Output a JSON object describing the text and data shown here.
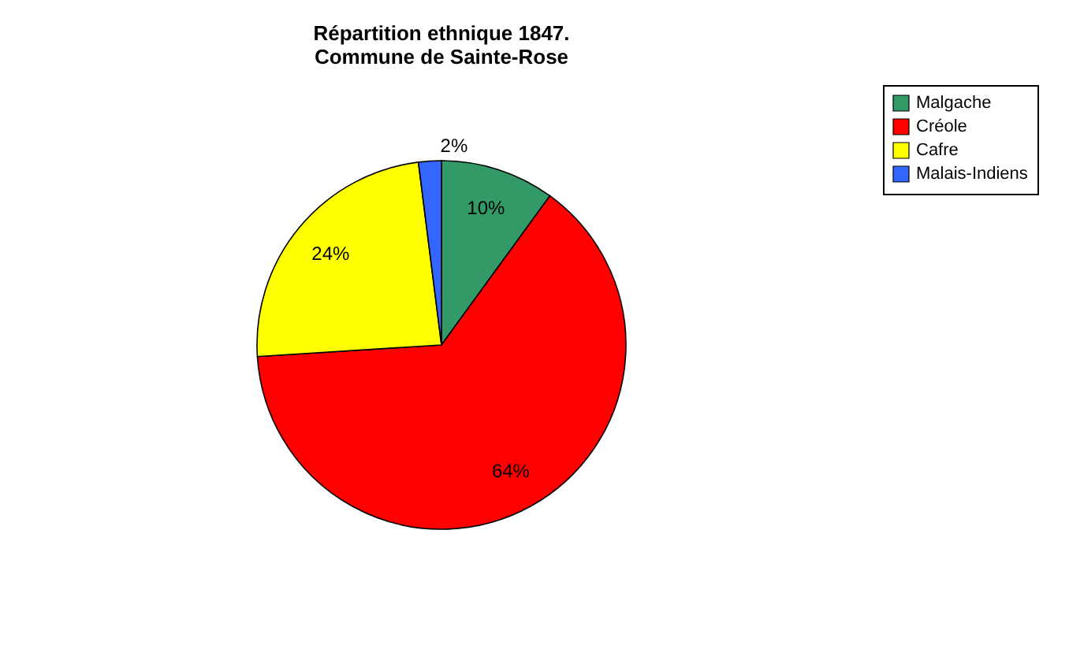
{
  "chart_data": {
    "type": "pie",
    "title": "Répartition ethnique 1847.\nCommune de Sainte-Rose",
    "categories": [
      "Malgache",
      "Créole",
      "Cafre",
      "Malais-Indiens"
    ],
    "values": [
      10,
      64,
      24,
      2
    ],
    "colors": [
      "#339966",
      "#ff0000",
      "#ffff00",
      "#3366ff"
    ],
    "value_labels": [
      "10%",
      "64%",
      "24%",
      "2%"
    ],
    "legend": "right"
  }
}
